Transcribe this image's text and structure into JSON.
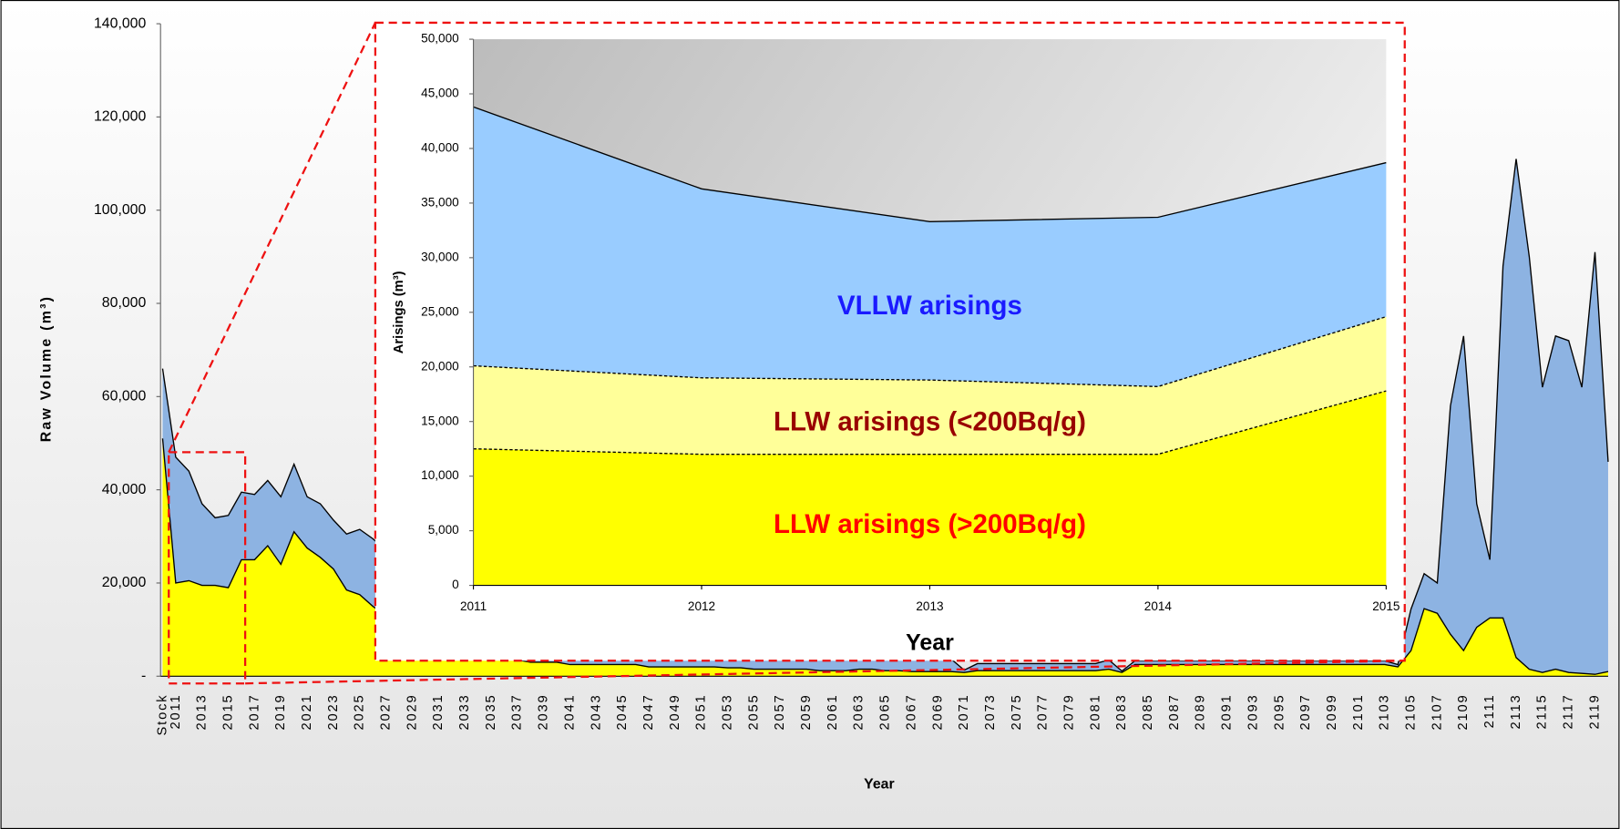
{
  "chart_data": [
    {
      "type": "area",
      "x_label": "Year",
      "y_label": "Raw Volume (m³)",
      "categories": [
        "Stock",
        "2011",
        null,
        "2013",
        null,
        "2015",
        null,
        "2017",
        null,
        "2019",
        null,
        "2021",
        null,
        "2023",
        null,
        "2025",
        null,
        "2027",
        null,
        "2029",
        null,
        "2031",
        null,
        "2033",
        null,
        "2035",
        null,
        "2037",
        null,
        "2039",
        null,
        "2041",
        null,
        "2043",
        null,
        "2045",
        null,
        "2047",
        null,
        "2049",
        null,
        "2051",
        null,
        "2053",
        null,
        "2055",
        null,
        "2057",
        null,
        "2059",
        null,
        "2061",
        null,
        "2063",
        null,
        "2065",
        null,
        "2067",
        null,
        "2069",
        null,
        "2071",
        null,
        "2073",
        null,
        "2075",
        null,
        "2077",
        null,
        "2079",
        null,
        "2081",
        null,
        "2083",
        null,
        "2085",
        null,
        "2087",
        null,
        "2089",
        null,
        "2091",
        null,
        "2093",
        null,
        "2095",
        null,
        "2097",
        null,
        "2099",
        null,
        "2101",
        null,
        "2103",
        null,
        "2105",
        null,
        "2107",
        null,
        "2109",
        null,
        "2111",
        null,
        "2113",
        null,
        "2115",
        null,
        "2117",
        null,
        "2119",
        null
      ],
      "series": [
        {
          "color": "#ffff00",
          "values": [
            51000,
            20000,
            20500,
            19500,
            19500,
            19000,
            25000,
            25000,
            28000,
            24000,
            31000,
            27500,
            25500,
            23000,
            18500,
            17500,
            15000,
            13000,
            11000,
            9000,
            8000,
            7000,
            6000,
            5000,
            4500,
            4000,
            3500,
            3500,
            3000,
            3000,
            3000,
            2500,
            2500,
            2500,
            2500,
            2500,
            2500,
            2000,
            2000,
            2000,
            2000,
            2000,
            2000,
            1800,
            1800,
            1500,
            1500,
            1500,
            1500,
            1500,
            1200,
            1200,
            1200,
            1500,
            1500,
            1200,
            1200,
            1000,
            1000,
            1000,
            1000,
            800,
            1200,
            1200,
            1200,
            1200,
            1200,
            1200,
            1200,
            1200,
            1200,
            1200,
            1500,
            800,
            2500,
            2500,
            2500,
            2500,
            2500,
            2500,
            2500,
            2500,
            2500,
            2500,
            2500,
            2500,
            2500,
            2500,
            2500,
            2500,
            2500,
            2500,
            2500,
            2500,
            2000,
            5500,
            14500,
            13500,
            9000,
            5500,
            10500,
            12500,
            12500,
            4000,
            1500,
            800,
            1500,
            800,
            600,
            400,
            1000
          ]
        },
        {
          "color": "#8db3e2",
          "values": [
            15000,
            27000,
            23500,
            17500,
            14500,
            15500,
            14500,
            14000,
            14000,
            14500,
            14500,
            11000,
            11500,
            10500,
            12000,
            14000,
            14500,
            14000,
            14000,
            13000,
            12000,
            11000,
            10000,
            9000,
            7500,
            7000,
            6500,
            5500,
            5500,
            5000,
            4500,
            4500,
            4000,
            3500,
            3000,
            2500,
            2500,
            2500,
            2500,
            2000,
            2000,
            1800,
            1800,
            2000,
            2000,
            2200,
            2000,
            2300,
            2200,
            2200,
            2500,
            2400,
            2500,
            2200,
            2400,
            2500,
            2500,
            2600,
            2700,
            2600,
            2700,
            500,
            1500,
            1500,
            1500,
            1500,
            1500,
            1500,
            1500,
            1500,
            1500,
            1500,
            2000,
            300,
            800,
            800,
            800,
            800,
            800,
            800,
            800,
            800,
            800,
            800,
            800,
            800,
            800,
            800,
            800,
            800,
            800,
            800,
            800,
            800,
            500,
            8900,
            7500,
            6500,
            49000,
            67500,
            26500,
            12500,
            75500,
            107000,
            88500,
            61200,
            71500,
            71200,
            61400,
            90600,
            45000
          ]
        }
      ],
      "ylim": [
        0,
        140000
      ],
      "yticks": [
        {
          "value": 0,
          "label": "-"
        },
        {
          "value": 20000,
          "label": "20,000"
        },
        {
          "value": 40000,
          "label": "40,000"
        },
        {
          "value": 60000,
          "label": "60,000"
        },
        {
          "value": 80000,
          "label": "80,000"
        },
        {
          "value": 100000,
          "label": "100,000"
        },
        {
          "value": 120000,
          "label": "120,000"
        },
        {
          "value": 140000,
          "label": "140,000"
        }
      ]
    },
    {
      "type": "area",
      "x_label": "Year",
      "y_label": "Arisings (m³)",
      "x": [
        2011,
        2012,
        2013,
        2014,
        2015
      ],
      "xlim": [
        2011,
        2015
      ],
      "xticks": [
        2011,
        2012,
        2013,
        2014,
        2015
      ],
      "series": [
        {
          "name": "LLW arisings (>200Bq/g)",
          "color": "#ffff00",
          "label_color": "#ff0000",
          "outline": "dashed",
          "values": [
            12500,
            12000,
            12000,
            12000,
            17800
          ]
        },
        {
          "name": "LLW arisings (<200Bq/g)",
          "color": "#ffff99",
          "label_color": "#990000",
          "outline": "dashed",
          "values": [
            7600,
            7000,
            6800,
            6200,
            6800
          ]
        },
        {
          "name": "VLLW arisings",
          "color": "#99ccff",
          "label_color": "#1a1aff",
          "outline": "solid",
          "values": [
            23700,
            17300,
            14500,
            15500,
            14100
          ]
        }
      ],
      "ylim": [
        0,
        50000
      ],
      "yticks": [
        0,
        {
          "value": 5000,
          "label": "5,000"
        },
        {
          "value": 10000,
          "label": "10,000"
        },
        {
          "value": 15000,
          "label": "15,000"
        },
        {
          "value": 20000,
          "label": "20,000"
        },
        {
          "value": 25000,
          "label": "25,000"
        },
        {
          "value": 30000,
          "label": "30,000"
        },
        {
          "value": 35000,
          "label": "35,000"
        },
        {
          "value": 40000,
          "label": "40,000"
        },
        {
          "value": 45000,
          "label": "45,000"
        },
        {
          "value": 50000,
          "label": "50,000"
        }
      ]
    }
  ]
}
